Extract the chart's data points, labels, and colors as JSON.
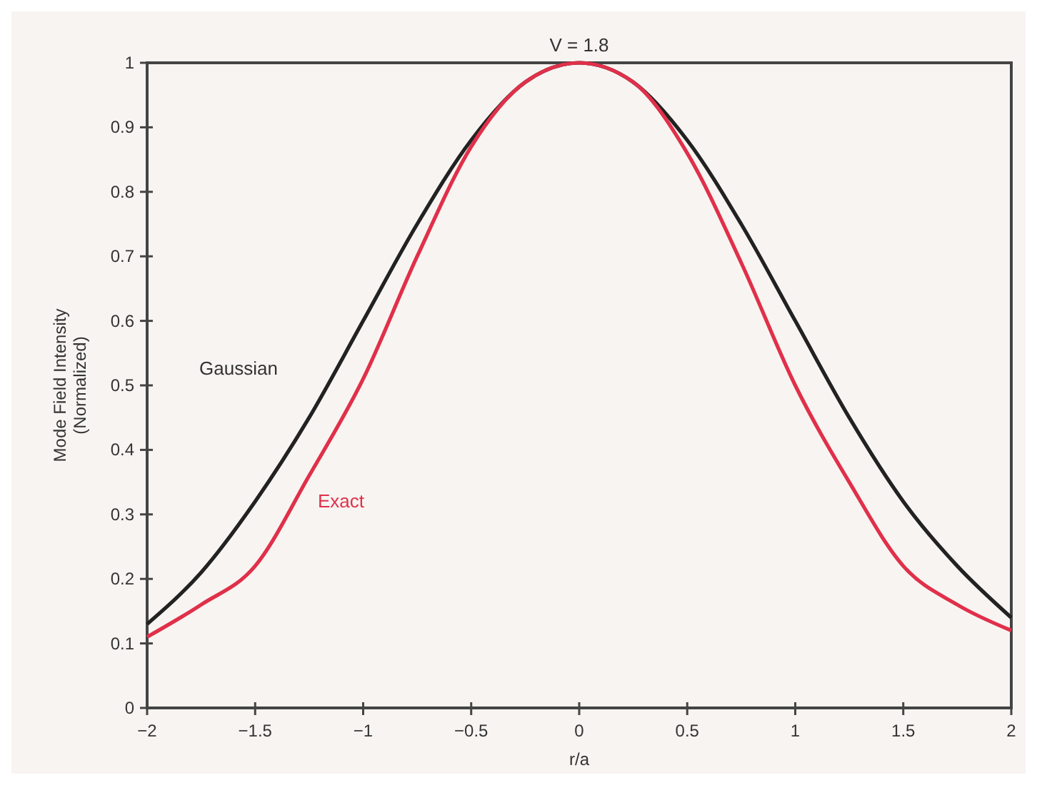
{
  "chart_data": {
    "type": "line",
    "title": "V = 1.8",
    "xlabel": "r/a",
    "ylabel": "Mode Field Intensity\n(Normalized)",
    "x": [
      -2,
      -1.75,
      -1.5,
      -1.25,
      -1,
      -0.75,
      -0.5,
      -0.25,
      0,
      0.25,
      0.5,
      0.75,
      1,
      1.25,
      1.5,
      1.75,
      2
    ],
    "series": [
      {
        "name": "Gaussian",
        "color": "#222222",
        "values": [
          0.13,
          0.21,
          0.32,
          0.45,
          0.6,
          0.75,
          0.88,
          0.97,
          1,
          0.97,
          0.88,
          0.75,
          0.6,
          0.45,
          0.32,
          0.22,
          0.14
        ]
      },
      {
        "name": "Exact",
        "color": "#e0304a",
        "values": [
          0.11,
          0.16,
          0.22,
          0.36,
          0.51,
          0.7,
          0.87,
          0.97,
          1,
          0.97,
          0.86,
          0.69,
          0.5,
          0.35,
          0.22,
          0.16,
          0.12
        ]
      }
    ],
    "xlim": [
      -2,
      2
    ],
    "xticks": [
      -2,
      -1.5,
      -1,
      -0.5,
      0,
      0.5,
      1,
      1.5,
      2
    ],
    "ylim": [
      0,
      1
    ],
    "yticks": [
      0,
      0.1,
      0.2,
      0.3,
      0.4,
      0.5,
      0.6,
      0.7,
      0.8,
      0.9,
      1
    ],
    "grid": false,
    "legend": false,
    "marker": "none",
    "line_style": "solid"
  }
}
